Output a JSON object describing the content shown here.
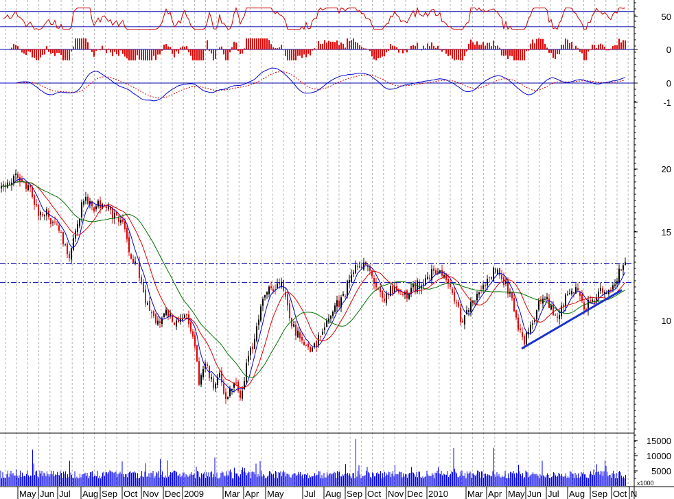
{
  "chart_data": {
    "type": "candlestick",
    "x_axis": {
      "labels": [
        "May",
        "Jun",
        "Jul",
        "Aug",
        "Sep",
        "Oct",
        "Nov",
        "Dec",
        "2009",
        "Mar",
        "Apr",
        "May",
        "Jul",
        "Aug",
        "Sep",
        "Oct",
        "Nov",
        "Dec",
        "2010",
        "Mar",
        "Apr",
        "May",
        "Jun",
        "Jul",
        "Aug",
        "Sep",
        "Oct",
        "N"
      ]
    },
    "price_axis": {
      "scale": "log",
      "ticks": [
        "20",
        "15",
        "10"
      ],
      "ylim": [
        6.0,
        25.0
      ]
    },
    "indicators": {
      "rsi": {
        "ticks": [
          "50"
        ],
        "level_lines": [
          35,
          65
        ]
      },
      "histogram": {
        "ticks": [
          "0"
        ]
      },
      "macd": {
        "ticks": [
          "0",
          "-1"
        ]
      }
    },
    "volume": {
      "ticks": [
        "15000",
        "10000",
        "5000"
      ],
      "unit_label": "x1000",
      "ylim": [
        0,
        17000
      ]
    },
    "resistance_levels": [
      13.0,
      11.9
    ],
    "price_path": [
      [
        0,
        18.3
      ],
      [
        10,
        18.8
      ],
      [
        20,
        19.2
      ],
      [
        30,
        19.4
      ],
      [
        40,
        18.5
      ],
      [
        55,
        16.5
      ],
      [
        70,
        16.2
      ],
      [
        85,
        15.2
      ],
      [
        100,
        13.3
      ],
      [
        110,
        15.3
      ],
      [
        125,
        17.8
      ],
      [
        135,
        16.6
      ],
      [
        145,
        17.0
      ],
      [
        160,
        16.5
      ],
      [
        170,
        16.2
      ],
      [
        180,
        15.4
      ],
      [
        190,
        13.4
      ],
      [
        200,
        12.8
      ],
      [
        210,
        11.2
      ],
      [
        220,
        10.3
      ],
      [
        230,
        10.0
      ],
      [
        240,
        10.5
      ],
      [
        255,
        10.0
      ],
      [
        270,
        10.4
      ],
      [
        280,
        9.4
      ],
      [
        290,
        7.6
      ],
      [
        300,
        8.2
      ],
      [
        310,
        7.4
      ],
      [
        320,
        7.8
      ],
      [
        330,
        6.8
      ],
      [
        340,
        7.6
      ],
      [
        352,
        7.0
      ],
      [
        362,
        8.5
      ],
      [
        372,
        9.2
      ],
      [
        382,
        10.8
      ],
      [
        392,
        11.4
      ],
      [
        402,
        11.8
      ],
      [
        412,
        11.7
      ],
      [
        422,
        10.0
      ],
      [
        432,
        9.4
      ],
      [
        442,
        9.0
      ],
      [
        452,
        8.8
      ],
      [
        462,
        9.1
      ],
      [
        472,
        9.5
      ],
      [
        482,
        10.2
      ],
      [
        492,
        10.8
      ],
      [
        502,
        11.3
      ],
      [
        512,
        12.5
      ],
      [
        522,
        13.0
      ],
      [
        532,
        12.8
      ],
      [
        542,
        12.4
      ],
      [
        552,
        11.5
      ],
      [
        562,
        11.0
      ],
      [
        572,
        11.6
      ],
      [
        582,
        11.4
      ],
      [
        592,
        11.2
      ],
      [
        602,
        11.6
      ],
      [
        612,
        11.8
      ],
      [
        622,
        12.2
      ],
      [
        632,
        12.6
      ],
      [
        642,
        12.4
      ],
      [
        652,
        12.2
      ],
      [
        662,
        11.1
      ],
      [
        672,
        10.0
      ],
      [
        682,
        10.4
      ],
      [
        692,
        11.0
      ],
      [
        702,
        11.5
      ],
      [
        712,
        12.3
      ],
      [
        722,
        12.6
      ],
      [
        732,
        12.1
      ],
      [
        742,
        11.3
      ],
      [
        752,
        10.1
      ],
      [
        762,
        9.0
      ],
      [
        772,
        9.6
      ],
      [
        782,
        10.5
      ],
      [
        792,
        11.4
      ],
      [
        802,
        10.6
      ],
      [
        812,
        10.1
      ],
      [
        822,
        11.0
      ],
      [
        832,
        11.8
      ],
      [
        842,
        11.2
      ],
      [
        852,
        10.6
      ],
      [
        862,
        11.0
      ],
      [
        872,
        11.3
      ],
      [
        882,
        11.4
      ],
      [
        892,
        11.5
      ],
      [
        902,
        12.4
      ],
      [
        912,
        13.1
      ]
    ],
    "support_line": {
      "from": [
        760,
        8.8
      ],
      "to": [
        906,
        11.5
      ]
    }
  },
  "colors": {
    "up_candle": "#000000",
    "down_candle": "#e00000",
    "sma_short": "#0000cc",
    "sma_mid": "#e00000",
    "sma_long": "#007000",
    "level_line": "#0000aa",
    "support": "#1a33cc",
    "volume": "#0000ee",
    "rsi": "#cc0000",
    "hist": "#dd0000",
    "macd": "#0000cc",
    "signal": "#cc0000",
    "grid": "#b0b0b0"
  }
}
